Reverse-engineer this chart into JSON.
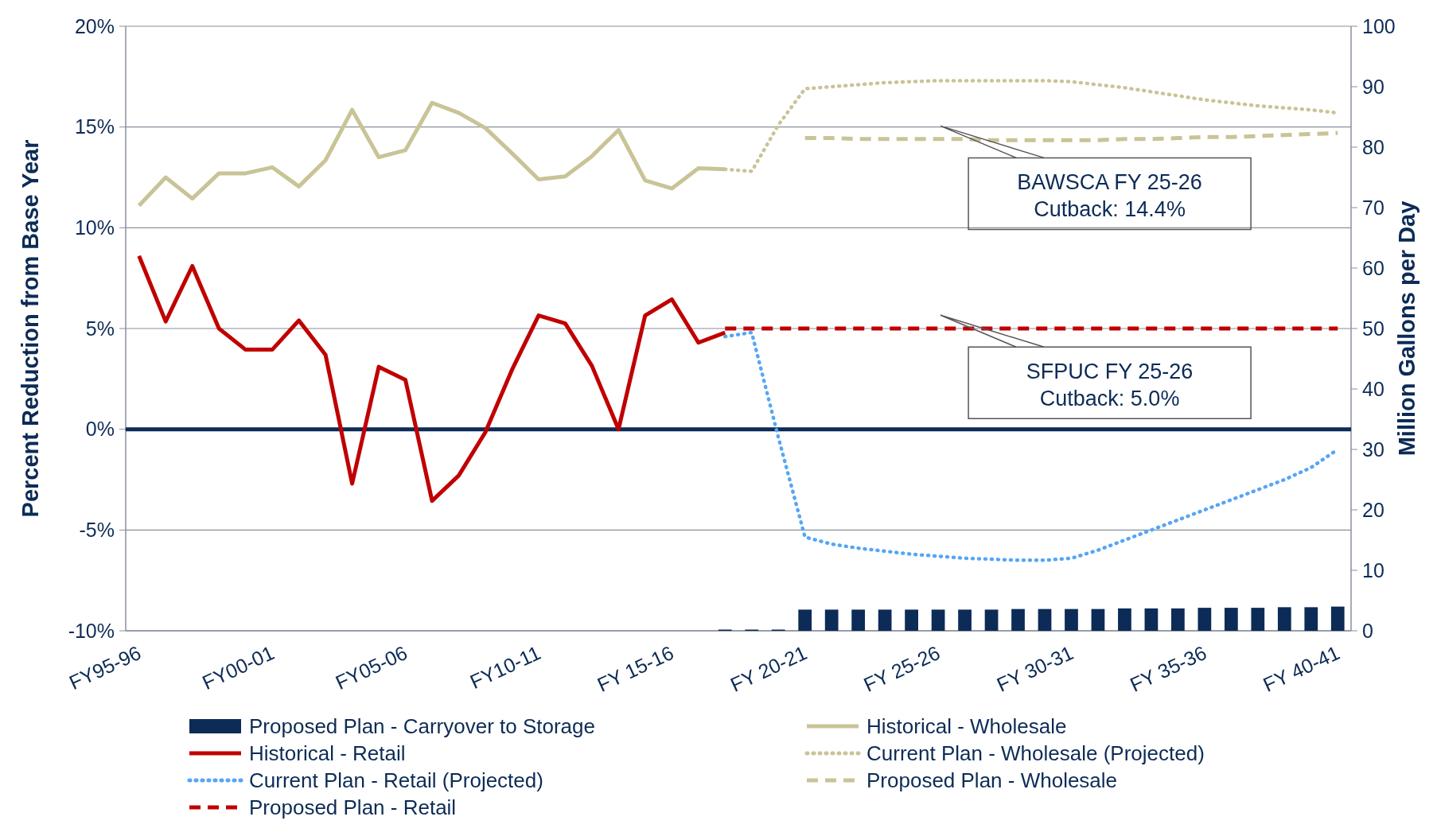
{
  "chart_data": {
    "type": "line",
    "xlabel": null,
    "ylabel": "Percent Reduction from Base Year",
    "y2label": "Million Gallons per Day",
    "categories": [
      "FY95-96",
      null,
      null,
      null,
      null,
      "FY00-01",
      null,
      null,
      null,
      null,
      "FY05-06",
      null,
      null,
      null,
      null,
      "FY10-11",
      null,
      null,
      null,
      null,
      "FY 15-16",
      null,
      null,
      null,
      null,
      "FY 20-21",
      null,
      null,
      null,
      null,
      "FY 25-26",
      null,
      null,
      null,
      null,
      "FY 30-31",
      null,
      null,
      null,
      null,
      "FY 35-36",
      null,
      null,
      null,
      null,
      "FY 40-41"
    ],
    "ylim": [
      -10,
      20
    ],
    "yticks": [
      {
        "value": -10,
        "label": "-10%"
      },
      {
        "value": -5,
        "label": "-5%"
      },
      {
        "value": 0,
        "label": "0%"
      },
      {
        "value": 5,
        "label": "5%"
      },
      {
        "value": 10,
        "label": "10%"
      },
      {
        "value": 15,
        "label": "15%"
      },
      {
        "value": 20,
        "label": "20%"
      }
    ],
    "y2lim": [
      0,
      100
    ],
    "y2ticks": [
      0,
      10,
      20,
      30,
      40,
      50,
      60,
      70,
      80,
      90,
      100
    ],
    "grid": "y",
    "legend": "bottom",
    "marker": "none",
    "ref_lines": [
      {
        "axis": "y",
        "value": 0,
        "label": null,
        "color": "#0c2b56"
      }
    ],
    "annotations": [
      "BAWSCA FY 25-26\nCutback: 14.4%",
      "SFPUC FY 25-26\nCutback: 5.0%"
    ],
    "series": [
      {
        "name": "Proposed Plan - Carryover to Storage",
        "type": "bar",
        "axis": "y2",
        "color": "#0c2b56",
        "values": [
          null,
          null,
          null,
          null,
          null,
          null,
          null,
          null,
          null,
          null,
          null,
          null,
          null,
          null,
          null,
          null,
          null,
          null,
          null,
          null,
          null,
          null,
          0.2,
          0.2,
          0.2,
          3.5,
          3.5,
          3.5,
          3.5,
          3.5,
          3.5,
          3.5,
          3.5,
          3.6,
          3.6,
          3.6,
          3.6,
          3.7,
          3.7,
          3.7,
          3.8,
          3.8,
          3.8,
          3.9,
          3.9,
          4.0
        ]
      },
      {
        "name": "Historical - Retail",
        "type": "line",
        "line_style": "solid",
        "color": "#c00000",
        "values": [
          8.6,
          5.35,
          8.1,
          5.0,
          3.95,
          3.95,
          5.4,
          3.7,
          -2.7,
          3.1,
          2.45,
          -3.55,
          -2.3,
          -0.15,
          2.95,
          5.65,
          5.25,
          3.15,
          0.0,
          5.65,
          6.45,
          4.3,
          4.8,
          null,
          null,
          null,
          null,
          null,
          null,
          null,
          null,
          null,
          null,
          null,
          null,
          null,
          null,
          null,
          null,
          null,
          null,
          null,
          null,
          null,
          null,
          null
        ]
      },
      {
        "name": "Current Plan - Retail (Projected)",
        "type": "line",
        "line_style": "dotted",
        "color": "#55a6f5",
        "values": [
          null,
          null,
          null,
          null,
          null,
          null,
          null,
          null,
          null,
          null,
          null,
          null,
          null,
          null,
          null,
          null,
          null,
          null,
          null,
          null,
          null,
          null,
          4.6,
          4.8,
          -0.4,
          -5.35,
          -5.7,
          -5.9,
          -6.05,
          -6.2,
          -6.3,
          -6.4,
          -6.45,
          -6.5,
          -6.5,
          -6.4,
          -6.0,
          -5.5,
          -5.0,
          -4.5,
          -4.0,
          -3.5,
          -3.0,
          -2.5,
          -1.9,
          -1.0
        ]
      },
      {
        "name": "Proposed Plan - Retail",
        "type": "line",
        "line_style": "dashed",
        "color": "#c00000",
        "values": [
          null,
          null,
          null,
          null,
          null,
          null,
          null,
          null,
          null,
          null,
          null,
          null,
          null,
          null,
          null,
          null,
          null,
          null,
          null,
          null,
          null,
          null,
          5.0,
          5.0,
          5.0,
          5.0,
          5.0,
          5.0,
          5.0,
          5.0,
          5.0,
          5.0,
          5.0,
          5.0,
          5.0,
          5.0,
          5.0,
          5.0,
          5.0,
          5.0,
          5.0,
          5.0,
          5.0,
          5.0,
          5.0,
          5.0
        ]
      },
      {
        "name": "Historical - Wholesale",
        "type": "line",
        "line_style": "solid",
        "color": "#c9c497",
        "values": [
          11.1,
          12.5,
          11.45,
          12.7,
          12.7,
          13.0,
          12.05,
          13.35,
          15.85,
          13.5,
          13.85,
          16.2,
          15.7,
          14.95,
          13.7,
          12.4,
          12.55,
          13.55,
          14.85,
          12.35,
          11.95,
          12.95,
          12.9,
          null,
          null,
          null,
          null,
          null,
          null,
          null,
          null,
          null,
          null,
          null,
          null,
          null,
          null,
          null,
          null,
          null,
          null,
          null,
          null,
          null,
          null,
          null
        ]
      },
      {
        "name": "Current Plan - Wholesale (Projected)",
        "type": "line",
        "line_style": "dotted",
        "color": "#c9c497",
        "values": [
          null,
          null,
          null,
          null,
          null,
          null,
          null,
          null,
          null,
          null,
          null,
          null,
          null,
          null,
          null,
          null,
          null,
          null,
          null,
          null,
          null,
          null,
          12.9,
          12.8,
          15.1,
          16.9,
          17.0,
          17.1,
          17.2,
          17.25,
          17.3,
          17.3,
          17.3,
          17.3,
          17.3,
          17.25,
          17.1,
          16.95,
          16.75,
          16.55,
          16.35,
          16.2,
          16.05,
          15.95,
          15.85,
          15.7
        ]
      },
      {
        "name": "Proposed Plan - Wholesale",
        "type": "line",
        "line_style": "dashed",
        "color": "#c9c497",
        "values": [
          null,
          null,
          null,
          null,
          null,
          null,
          null,
          null,
          null,
          null,
          null,
          null,
          null,
          null,
          null,
          null,
          null,
          null,
          null,
          null,
          null,
          null,
          null,
          null,
          null,
          14.45,
          14.45,
          14.4,
          14.4,
          14.4,
          14.4,
          14.4,
          14.35,
          14.35,
          14.35,
          14.35,
          14.35,
          14.4,
          14.4,
          14.45,
          14.5,
          14.5,
          14.55,
          14.6,
          14.65,
          14.7
        ]
      }
    ]
  }
}
